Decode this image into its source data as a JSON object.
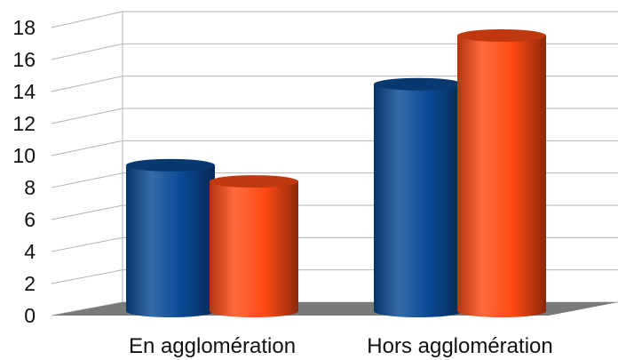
{
  "chart_data": {
    "type": "bar",
    "style": "3d-cylinder",
    "title": "",
    "xlabel": "",
    "ylabel": "",
    "categories": [
      "En agglomération",
      "Hors agglomération"
    ],
    "series": [
      {
        "color": "#0a4a95",
        "values": [
          9,
          14
        ]
      },
      {
        "color": "#ff4a14",
        "values": [
          8,
          17
        ]
      }
    ],
    "ylim": [
      0,
      18
    ],
    "yticks": [
      "0",
      "2",
      "4",
      "6",
      "8",
      "10",
      "12",
      "14",
      "16",
      "18"
    ],
    "grid": true,
    "legend": "none",
    "floor_color": "#7a7a7a",
    "grid_color": "#b3b3b3"
  }
}
